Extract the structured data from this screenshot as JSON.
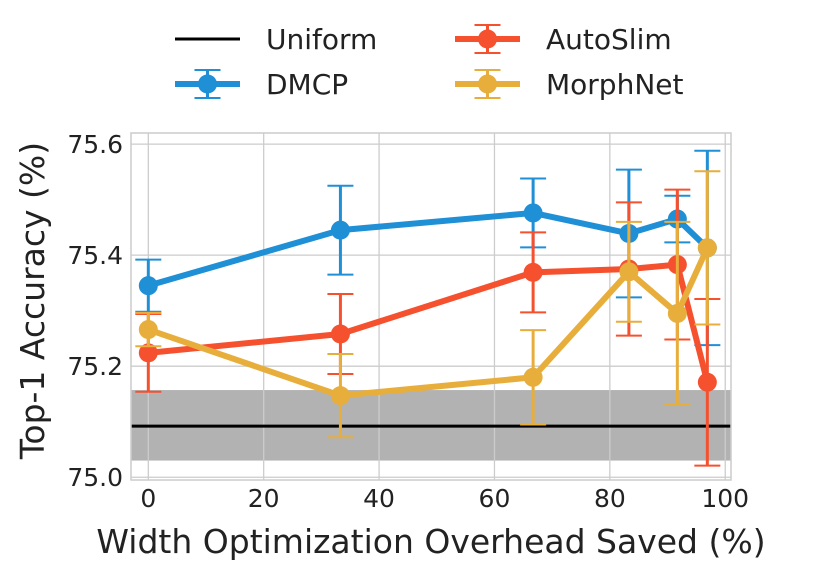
{
  "chart_data": {
    "type": "line",
    "xlabel": "Width Optimization Overhead Saved (%)",
    "ylabel": "Top-1 Accuracy (%)",
    "xlim": [
      -3,
      101
    ],
    "ylim": [
      74.995,
      75.62
    ],
    "x_ticks": [
      0,
      20,
      40,
      60,
      80,
      100
    ],
    "y_ticks": [
      75.0,
      75.2,
      75.4,
      75.6
    ],
    "x_tick_labels": [
      "0",
      "20",
      "40",
      "60",
      "80",
      "100"
    ],
    "y_tick_labels": [
      "75.0",
      "75.2",
      "75.4",
      "75.6"
    ],
    "grid": true,
    "legend": {
      "placement": "top, outside plot",
      "columns": 2,
      "entries": [
        "Uniform",
        "DMCP",
        "AutoSlim",
        "MorphNet"
      ]
    },
    "baseline": {
      "name": "Uniform",
      "value": 75.092,
      "band": [
        75.03,
        75.157
      ],
      "color": "#000000",
      "band_color": "#b2b2b2"
    },
    "series": [
      {
        "name": "DMCP",
        "color": "#1f8fd6",
        "x": [
          0,
          33.3,
          66.7,
          83.3,
          91.7,
          96.9
        ],
        "y": [
          75.345,
          75.445,
          75.476,
          75.439,
          75.465,
          75.413
        ],
        "err": [
          0.047,
          0.08,
          0.062,
          0.115,
          0.042,
          0.175
        ]
      },
      {
        "name": "AutoSlim",
        "color": "#f5512f",
        "x": [
          0,
          33.3,
          66.7,
          83.3,
          91.7,
          96.9
        ],
        "y": [
          75.224,
          75.258,
          75.369,
          75.375,
          75.383,
          75.171
        ],
        "err": [
          0.07,
          0.072,
          0.072,
          0.12,
          0.135,
          0.15
        ]
      },
      {
        "name": "MorphNet",
        "color": "#e8ae3c",
        "x": [
          0,
          33.3,
          66.7,
          83.3,
          91.7,
          96.9
        ],
        "y": [
          75.266,
          75.147,
          75.18,
          75.37,
          75.295,
          75.413
        ],
        "err": [
          0.03,
          0.075,
          0.085,
          0.09,
          0.165,
          0.138
        ]
      }
    ]
  }
}
